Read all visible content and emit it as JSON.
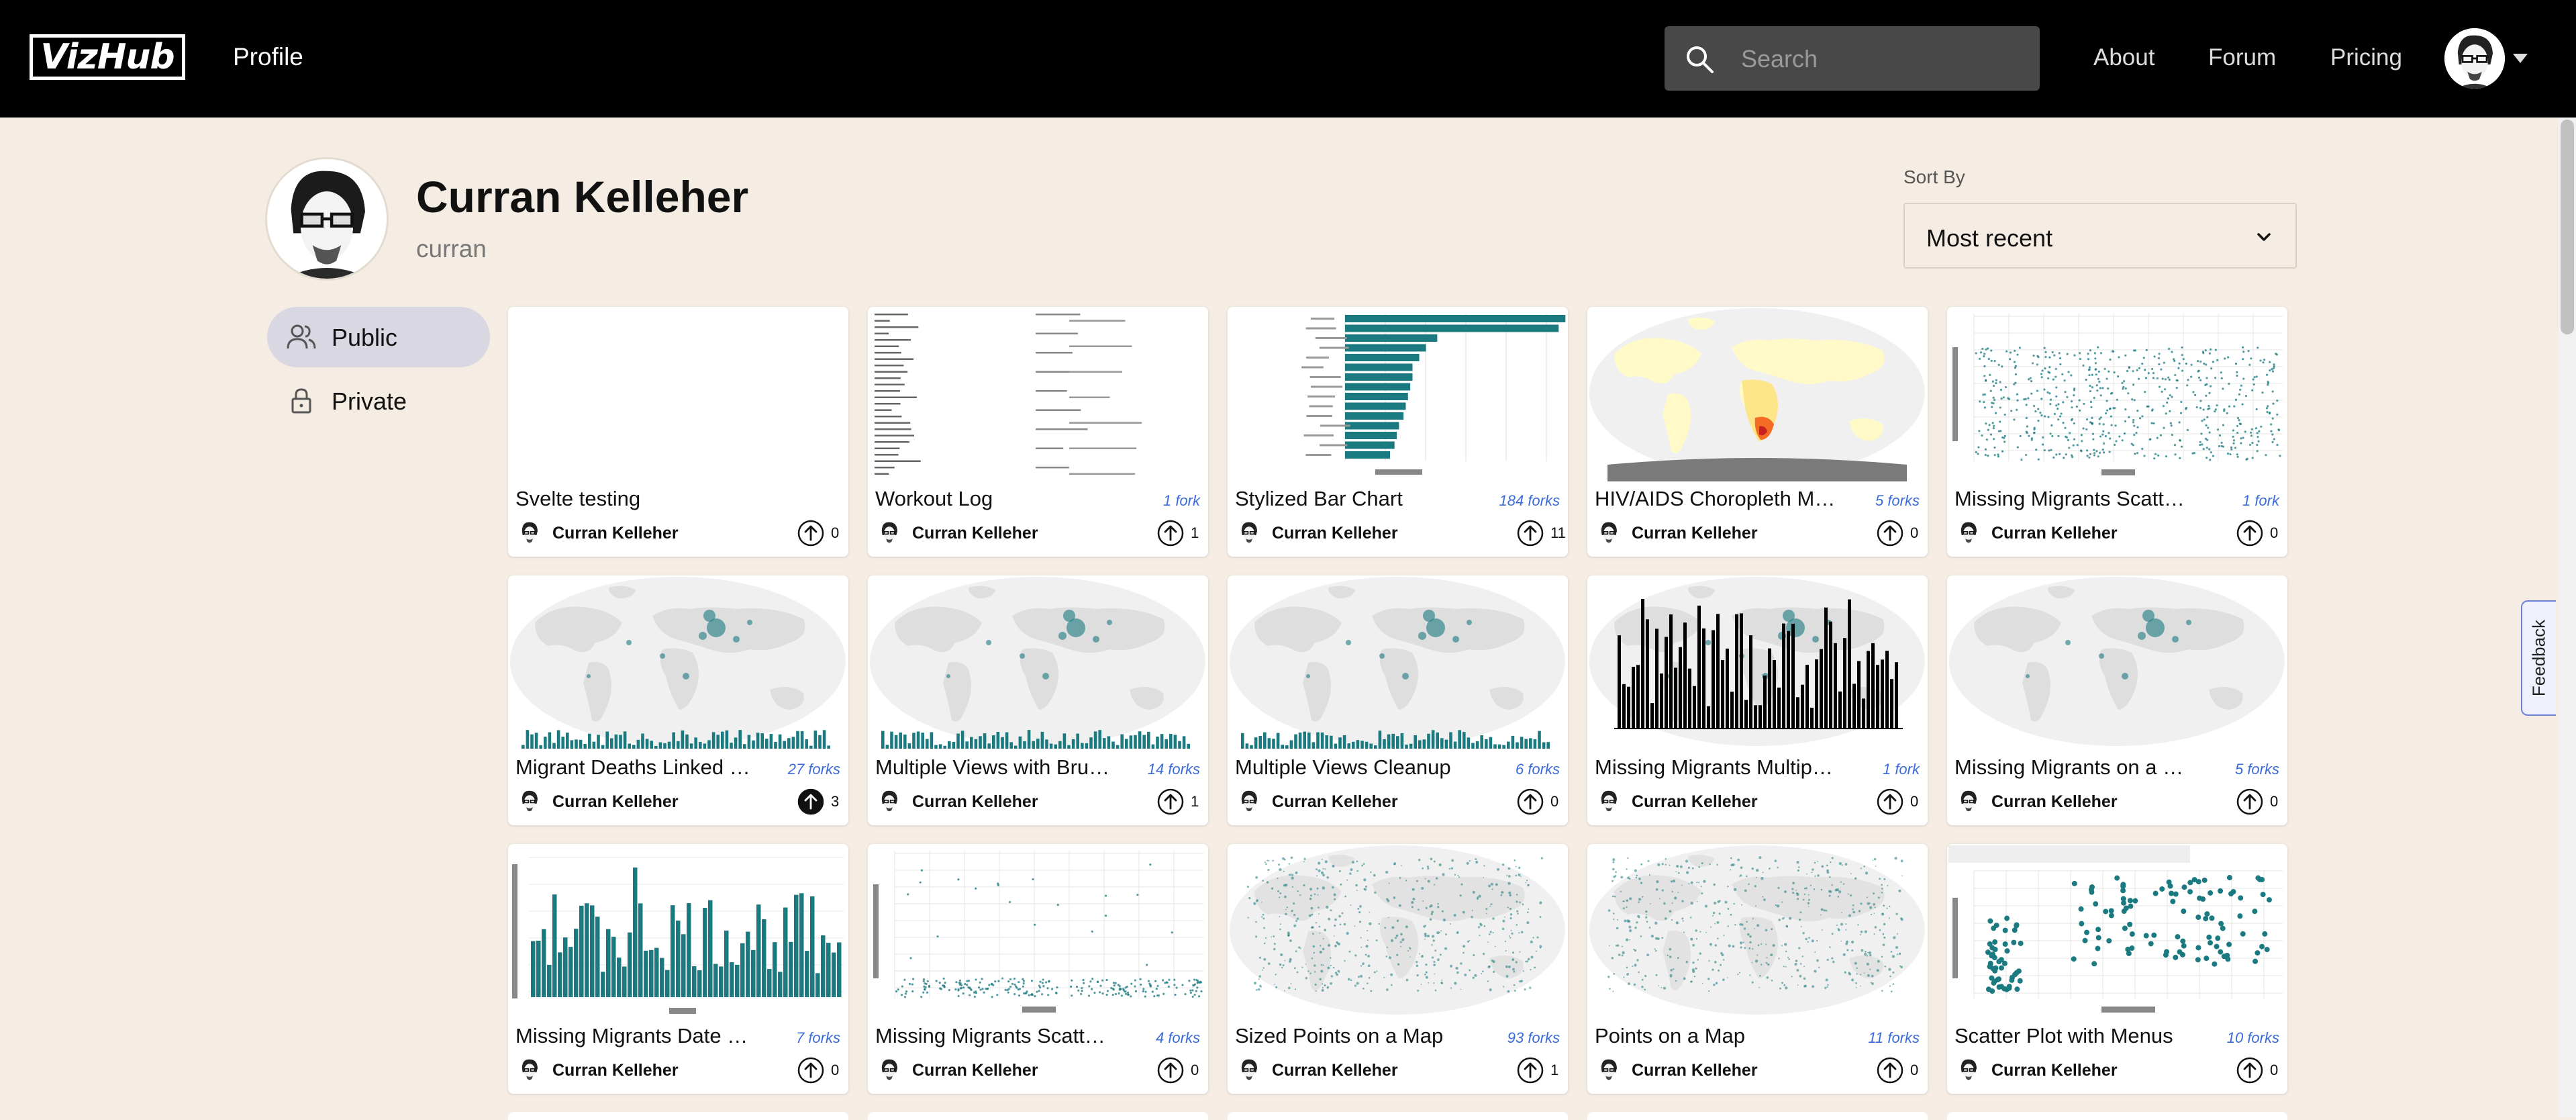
{
  "header": {
    "logo": "VizHub",
    "nav_profile": "Profile",
    "search_placeholder": "Search",
    "links": [
      "About",
      "Forum",
      "Pricing"
    ]
  },
  "profile": {
    "name": "Curran Kelleher",
    "username": "curran"
  },
  "sort": {
    "label": "Sort By",
    "value": "Most recent"
  },
  "sidebar": {
    "items": [
      {
        "label": "Public",
        "icon": "users-icon",
        "active": true
      },
      {
        "label": "Private",
        "icon": "lock-icon",
        "active": false
      }
    ]
  },
  "feedback_label": "Feedback",
  "colors": {
    "accent": "#1a7a80",
    "forks_link": "#3b6ad9",
    "page_bg": "#f5ede3"
  },
  "vizzes": [
    {
      "title": "Svelte testing",
      "forks": "",
      "author": "Curran Kelleher",
      "upvotes": "0",
      "thumb": "blank"
    },
    {
      "title": "Workout Log",
      "forks": "1 fork",
      "author": "Curran Kelleher",
      "upvotes": "1",
      "thumb": "text"
    },
    {
      "title": "Stylized Bar Chart",
      "forks": "184 forks",
      "author": "Curran Kelleher",
      "upvotes": "11",
      "thumb": "hbar"
    },
    {
      "title": "HIV/AIDS Choropleth Map",
      "forks": "5 forks",
      "author": "Curran Kelleher",
      "upvotes": "0",
      "thumb": "choropleth"
    },
    {
      "title": "Missing Migrants Scatter Plot",
      "forks": "1 fork",
      "author": "Curran Kelleher",
      "upvotes": "0",
      "thumb": "scatter"
    },
    {
      "title": "Migrant Deaths Linked Views",
      "forks": "27 forks",
      "author": "Curran Kelleher",
      "upvotes": "3",
      "thumb": "mapbars",
      "upvoted": true
    },
    {
      "title": "Multiple Views with Brushing",
      "forks": "14 forks",
      "author": "Curran Kelleher",
      "upvotes": "1",
      "thumb": "mapbars"
    },
    {
      "title": "Multiple Views Cleanup",
      "forks": "6 forks",
      "author": "Curran Kelleher",
      "upvotes": "0",
      "thumb": "mapbars"
    },
    {
      "title": "Missing Migrants Multiple Views",
      "forks": "1 fork",
      "author": "Curran Kelleher",
      "upvotes": "0",
      "thumb": "mapblackbars"
    },
    {
      "title": "Missing Migrants on a Map",
      "forks": "5 forks",
      "author": "Curran Kelleher",
      "upvotes": "0",
      "thumb": "map"
    },
    {
      "title": "Missing Migrants Date Histogram",
      "forks": "7 forks",
      "author": "Curran Kelleher",
      "upvotes": "0",
      "thumb": "histogram"
    },
    {
      "title": "Missing Migrants Scatter Plot",
      "forks": "4 forks",
      "author": "Curran Kelleher",
      "upvotes": "0",
      "thumb": "scatterlow"
    },
    {
      "title": "Sized Points on a Map",
      "forks": "93 forks",
      "author": "Curran Kelleher",
      "upvotes": "1",
      "thumb": "pointsmap"
    },
    {
      "title": "Points on a Map",
      "forks": "11 forks",
      "author": "Curran Kelleher",
      "upvotes": "0",
      "thumb": "pointsmap"
    },
    {
      "title": "Scatter Plot with Menus",
      "forks": "10 forks",
      "author": "Curran Kelleher",
      "upvotes": "0",
      "thumb": "iris"
    }
  ]
}
